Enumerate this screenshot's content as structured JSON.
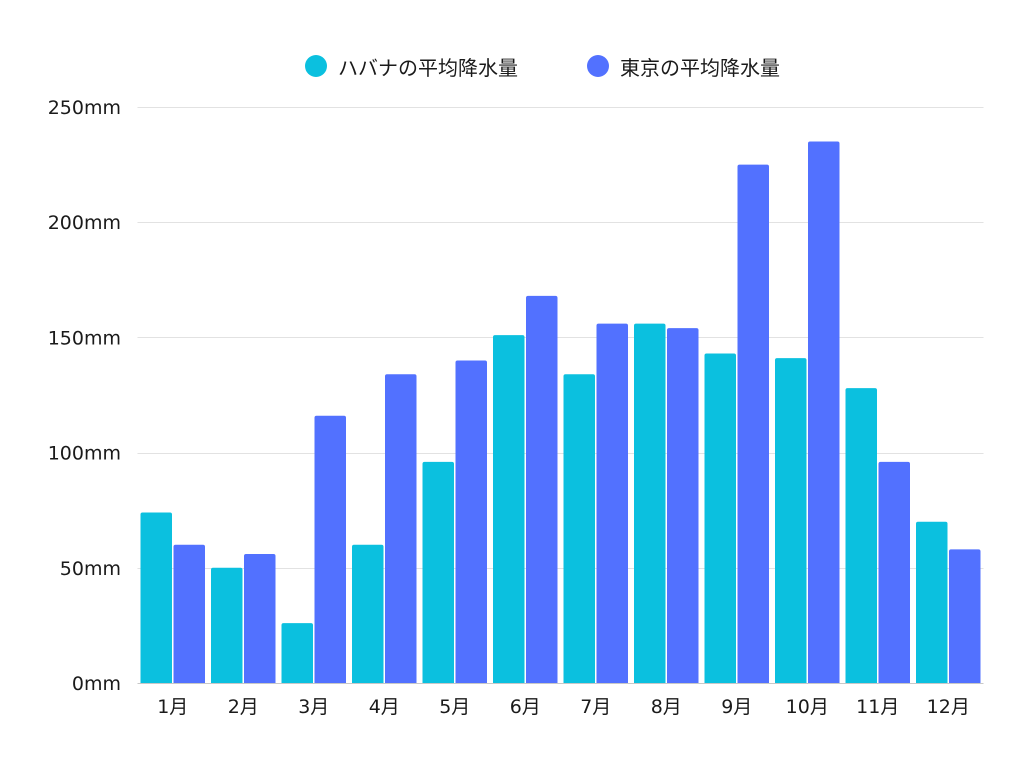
{
  "chart_data": {
    "type": "bar",
    "title": "",
    "xlabel": "",
    "ylabel": "",
    "categories": [
      "1月",
      "2月",
      "3月",
      "4月",
      "5月",
      "6月",
      "7月",
      "8月",
      "9月",
      "10月",
      "11月",
      "12月"
    ],
    "series": [
      {
        "name": "ハバナの平均降水量",
        "color": "#0BC0DF",
        "values": [
          74,
          50,
          26,
          60,
          96,
          151,
          134,
          156,
          143,
          141,
          128,
          70
        ]
      },
      {
        "name": "東京の平均降水量",
        "color": "#5271FF",
        "values": [
          60,
          56,
          116,
          134,
          140,
          168,
          156,
          154,
          225,
          235,
          96,
          58
        ]
      }
    ],
    "ylim": [
      0,
      250
    ],
    "yticks": [
      0,
      50,
      100,
      150,
      200,
      250
    ],
    "ytick_labels": [
      "0mm",
      "50mm",
      "100mm",
      "150mm",
      "200mm",
      "250mm"
    ],
    "grid": true,
    "legend_position": "top-center"
  }
}
